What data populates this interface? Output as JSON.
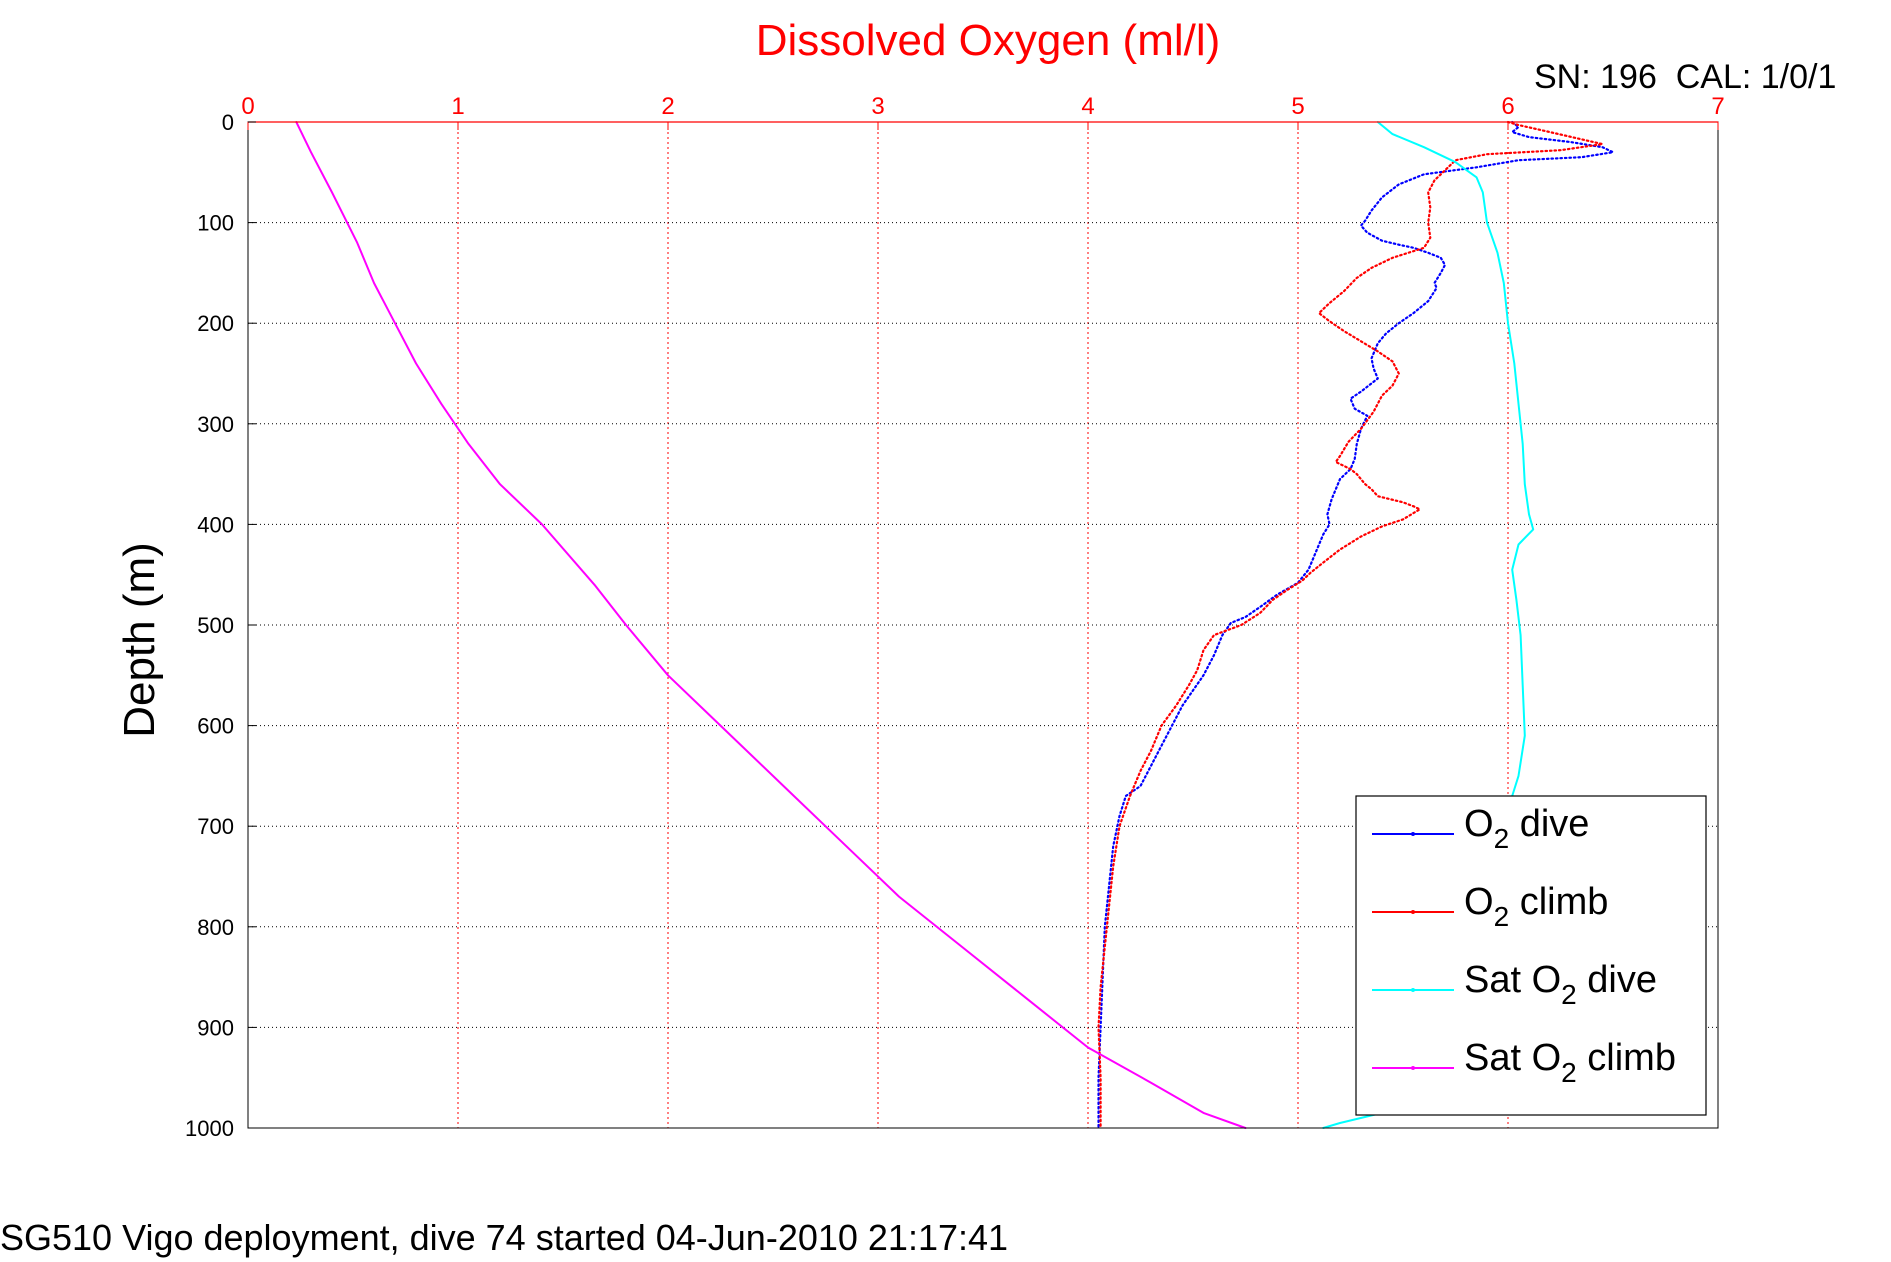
{
  "chart_data": {
    "type": "line",
    "title": "Dissolved Oxygen (ml/l)",
    "xlabel": "Dissolved Oxygen (ml/l)",
    "ylabel": "Depth (m)",
    "xlim": [
      0,
      7
    ],
    "ylim": [
      0,
      1000
    ],
    "y_reversed": true,
    "x_axis_position": "top",
    "xticks": [
      "0",
      "1",
      "2",
      "3",
      "4",
      "5",
      "6",
      "7"
    ],
    "yticks": [
      "0",
      "100",
      "200",
      "300",
      "400",
      "500",
      "600",
      "700",
      "800",
      "900",
      "1000"
    ],
    "grid": true,
    "legend_position": "bottom-right",
    "annotation_top_right": "SN: 196  CAL: 1/0/1",
    "footer": "SG510 Vigo deployment, dive 74 started 04-Jun-2010 21:17:41",
    "colors": {
      "title": "#ff0000",
      "x_axis": "#ff0000",
      "grid_x": "#ff0000",
      "grid_y": "#000000"
    },
    "series": [
      {
        "name": "O2 dive",
        "legend_main": "O",
        "legend_sub": "2",
        "legend_rest": " dive",
        "color": "#0000ff",
        "style": "dotted",
        "points": [
          [
            6.02,
            0
          ],
          [
            6.05,
            5
          ],
          [
            6.02,
            10
          ],
          [
            6.1,
            15
          ],
          [
            6.3,
            20
          ],
          [
            6.45,
            25
          ],
          [
            6.5,
            30
          ],
          [
            6.35,
            35
          ],
          [
            6.05,
            38
          ],
          [
            5.85,
            45
          ],
          [
            5.6,
            52
          ],
          [
            5.48,
            62
          ],
          [
            5.4,
            75
          ],
          [
            5.35,
            88
          ],
          [
            5.32,
            98
          ],
          [
            5.3,
            103
          ],
          [
            5.33,
            110
          ],
          [
            5.4,
            118
          ],
          [
            5.48,
            122
          ],
          [
            5.55,
            125
          ],
          [
            5.62,
            130
          ],
          [
            5.68,
            135
          ],
          [
            5.7,
            142
          ],
          [
            5.68,
            150
          ],
          [
            5.65,
            160
          ],
          [
            5.66,
            165
          ],
          [
            5.62,
            178
          ],
          [
            5.55,
            190
          ],
          [
            5.48,
            200
          ],
          [
            5.42,
            210
          ],
          [
            5.38,
            220
          ],
          [
            5.35,
            235
          ],
          [
            5.36,
            245
          ],
          [
            5.38,
            255
          ],
          [
            5.3,
            268
          ],
          [
            5.25,
            275
          ],
          [
            5.27,
            285
          ],
          [
            5.33,
            292
          ],
          [
            5.3,
            305
          ],
          [
            5.28,
            320
          ],
          [
            5.27,
            335
          ],
          [
            5.25,
            345
          ],
          [
            5.2,
            355
          ],
          [
            5.18,
            365
          ],
          [
            5.16,
            375
          ],
          [
            5.14,
            390
          ],
          [
            5.15,
            400
          ],
          [
            5.12,
            410
          ],
          [
            5.08,
            430
          ],
          [
            5.05,
            445
          ],
          [
            5.0,
            458
          ],
          [
            4.9,
            470
          ],
          [
            4.82,
            482
          ],
          [
            4.75,
            492
          ],
          [
            4.68,
            498
          ],
          [
            4.64,
            510
          ],
          [
            4.6,
            530
          ],
          [
            4.55,
            550
          ],
          [
            4.5,
            565
          ],
          [
            4.45,
            580
          ],
          [
            4.4,
            600
          ],
          [
            4.35,
            620
          ],
          [
            4.3,
            640
          ],
          [
            4.25,
            660
          ],
          [
            4.18,
            670
          ],
          [
            4.15,
            690
          ],
          [
            4.12,
            720
          ],
          [
            4.1,
            760
          ],
          [
            4.08,
            800
          ],
          [
            4.07,
            850
          ],
          [
            4.06,
            900
          ],
          [
            4.05,
            950
          ],
          [
            4.05,
            1000
          ]
        ]
      },
      {
        "name": "O2 climb",
        "legend_main": "O",
        "legend_sub": "2",
        "legend_rest": " climb",
        "color": "#ff0000",
        "style": "dotted",
        "points": [
          [
            6.0,
            0
          ],
          [
            6.05,
            3
          ],
          [
            6.2,
            10
          ],
          [
            6.45,
            22
          ],
          [
            6.25,
            28
          ],
          [
            5.9,
            32
          ],
          [
            5.75,
            38
          ],
          [
            5.7,
            48
          ],
          [
            5.65,
            58
          ],
          [
            5.62,
            70
          ],
          [
            5.63,
            85
          ],
          [
            5.62,
            100
          ],
          [
            5.63,
            115
          ],
          [
            5.6,
            125
          ],
          [
            5.45,
            135
          ],
          [
            5.35,
            145
          ],
          [
            5.28,
            155
          ],
          [
            5.22,
            168
          ],
          [
            5.15,
            180
          ],
          [
            5.1,
            190
          ],
          [
            5.15,
            198
          ],
          [
            5.22,
            208
          ],
          [
            5.3,
            218
          ],
          [
            5.38,
            228
          ],
          [
            5.45,
            238
          ],
          [
            5.48,
            250
          ],
          [
            5.45,
            262
          ],
          [
            5.4,
            272
          ],
          [
            5.38,
            280
          ],
          [
            5.36,
            288
          ],
          [
            5.3,
            305
          ],
          [
            5.24,
            318
          ],
          [
            5.2,
            332
          ],
          [
            5.18,
            338
          ],
          [
            5.25,
            345
          ],
          [
            5.28,
            350
          ],
          [
            5.32,
            360
          ],
          [
            5.35,
            365
          ],
          [
            5.38,
            372
          ],
          [
            5.5,
            378
          ],
          [
            5.55,
            382
          ],
          [
            5.58,
            385
          ],
          [
            5.5,
            395
          ],
          [
            5.4,
            402
          ],
          [
            5.3,
            412
          ],
          [
            5.2,
            425
          ],
          [
            5.12,
            438
          ],
          [
            5.06,
            448
          ],
          [
            5.02,
            456
          ],
          [
            4.95,
            465
          ],
          [
            4.88,
            475
          ],
          [
            4.82,
            488
          ],
          [
            4.73,
            500
          ],
          [
            4.6,
            510
          ],
          [
            4.55,
            525
          ],
          [
            4.52,
            545
          ],
          [
            4.48,
            560
          ],
          [
            4.42,
            580
          ],
          [
            4.35,
            600
          ],
          [
            4.3,
            625
          ],
          [
            4.25,
            645
          ],
          [
            4.2,
            670
          ],
          [
            4.15,
            700
          ],
          [
            4.12,
            740
          ],
          [
            4.1,
            780
          ],
          [
            4.08,
            820
          ],
          [
            4.06,
            860
          ],
          [
            4.05,
            900
          ],
          [
            4.06,
            950
          ],
          [
            4.06,
            1000
          ]
        ]
      },
      {
        "name": "Sat O2 dive",
        "legend_main": "Sat O",
        "legend_sub": "2",
        "legend_rest": " dive",
        "color": "#00ffff",
        "style": "solid",
        "points": [
          [
            5.38,
            0
          ],
          [
            5.45,
            12
          ],
          [
            5.6,
            25
          ],
          [
            5.75,
            40
          ],
          [
            5.85,
            55
          ],
          [
            5.88,
            70
          ],
          [
            5.9,
            100
          ],
          [
            5.95,
            130
          ],
          [
            5.98,
            160
          ],
          [
            6.0,
            200
          ],
          [
            6.03,
            240
          ],
          [
            6.05,
            280
          ],
          [
            6.07,
            320
          ],
          [
            6.08,
            360
          ],
          [
            6.1,
            390
          ],
          [
            6.12,
            405
          ],
          [
            6.05,
            420
          ],
          [
            6.02,
            445
          ],
          [
            6.04,
            475
          ],
          [
            6.06,
            510
          ],
          [
            6.07,
            560
          ],
          [
            6.08,
            610
          ],
          [
            6.05,
            650
          ],
          [
            6.02,
            670
          ],
          [
            5.9,
            720
          ],
          [
            5.78,
            790
          ],
          [
            5.7,
            850
          ],
          [
            5.62,
            900
          ],
          [
            5.55,
            960
          ],
          [
            5.4,
            985
          ],
          [
            5.2,
            995
          ],
          [
            5.12,
            1000
          ]
        ]
      },
      {
        "name": "Sat O2 climb",
        "legend_main": "Sat O",
        "legend_sub": "2",
        "legend_rest": " climb",
        "color": "#ff00ff",
        "style": "solid",
        "points": [
          [
            0.23,
            0
          ],
          [
            0.3,
            30
          ],
          [
            0.4,
            70
          ],
          [
            0.52,
            120
          ],
          [
            0.6,
            160
          ],
          [
            0.7,
            200
          ],
          [
            0.8,
            240
          ],
          [
            0.92,
            280
          ],
          [
            1.05,
            320
          ],
          [
            1.2,
            360
          ],
          [
            1.4,
            400
          ],
          [
            1.65,
            460
          ],
          [
            1.8,
            500
          ],
          [
            2.0,
            550
          ],
          [
            2.25,
            600
          ],
          [
            2.55,
            660
          ],
          [
            2.8,
            710
          ],
          [
            3.1,
            770
          ],
          [
            3.4,
            820
          ],
          [
            3.7,
            870
          ],
          [
            4.0,
            920
          ],
          [
            4.3,
            955
          ],
          [
            4.55,
            985
          ],
          [
            4.75,
            1000
          ]
        ]
      }
    ]
  }
}
